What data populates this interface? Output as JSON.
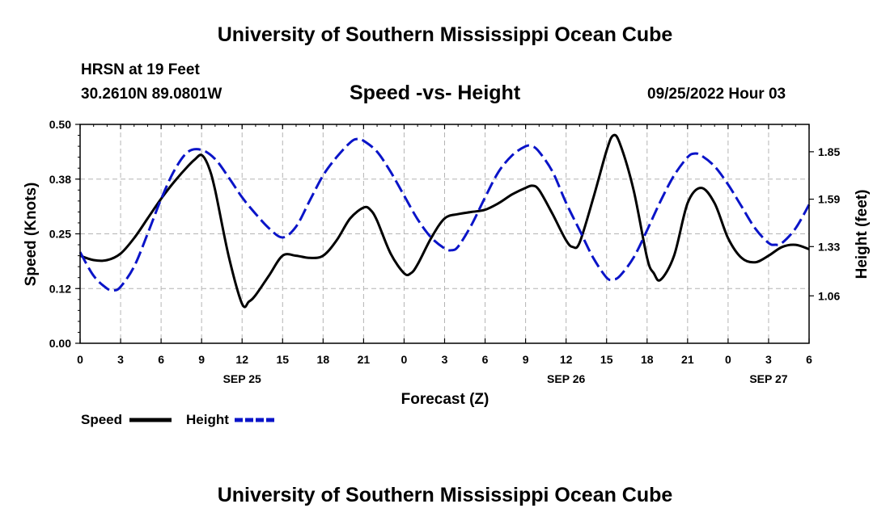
{
  "header": {
    "main_title": "University of Southern Mississippi Ocean Cube",
    "station": "HRSN at 19 Feet",
    "coords": "30.2610N  89.0801W",
    "chart_title": "Speed -vs- Height",
    "datetime": "09/25/2022 Hour 03"
  },
  "footer": {
    "title": "University of Southern Mississippi Ocean Cube"
  },
  "chart_data": {
    "type": "line",
    "title": "Speed -vs- Height",
    "xlabel": "Forecast (Z)",
    "ylabel_left": "Speed (Knots)",
    "ylabel_right": "Height (feet)",
    "x_hours_range": [
      0,
      54
    ],
    "ylim_left": [
      0,
      0.5
    ],
    "ylim_right": [
      0.8,
      2.0
    ],
    "x_tick_hours": [
      0,
      3,
      6,
      9,
      12,
      15,
      18,
      21,
      24,
      27,
      30,
      33,
      36,
      39,
      42,
      45,
      48,
      51,
      54
    ],
    "x_tick_labels": [
      "0",
      "3",
      "6",
      "9",
      "12",
      "15",
      "18",
      "21",
      "0",
      "3",
      "6",
      "9",
      "12",
      "15",
      "18",
      "21",
      "0",
      "3",
      "6"
    ],
    "date_labels": [
      {
        "hour": 12,
        "label": "SEP 25"
      },
      {
        "hour": 36,
        "label": "SEP 26"
      },
      {
        "hour": 51,
        "label": "SEP 27"
      }
    ],
    "left_ticks": [
      0.0,
      0.125,
      0.25,
      0.375,
      0.5
    ],
    "left_tick_labels": [
      "0.00",
      "0.12",
      "0.25",
      "0.38",
      "0.50"
    ],
    "right_ticks": [
      1.06,
      1.33,
      1.59,
      1.85
    ],
    "right_tick_labels": [
      "1.06",
      "1.33",
      "1.59",
      "1.85"
    ],
    "grid": true,
    "legend_position": "bottom-left",
    "series": [
      {
        "name": "Speed",
        "axis": "left",
        "color": "#000000",
        "style": "solid",
        "hours": [
          0,
          1,
          2,
          3,
          4,
          5,
          6,
          7,
          8,
          8.5,
          9,
          9.5,
          10,
          11,
          12,
          12.5,
          13,
          14,
          15,
          16,
          17,
          18,
          19,
          20,
          21,
          21.5,
          22,
          23,
          24,
          24.5,
          25,
          26,
          27,
          28,
          29,
          30,
          31,
          32,
          33,
          33.5,
          34,
          35,
          36,
          36.5,
          37,
          38,
          39,
          39.5,
          40,
          41,
          42,
          42.5,
          43,
          44,
          45,
          46,
          47,
          48,
          49,
          50,
          51,
          52,
          53,
          54
        ],
        "values": [
          0.2,
          0.19,
          0.19,
          0.205,
          0.24,
          0.285,
          0.33,
          0.37,
          0.405,
          0.42,
          0.43,
          0.405,
          0.35,
          0.2,
          0.09,
          0.095,
          0.11,
          0.155,
          0.2,
          0.2,
          0.195,
          0.2,
          0.235,
          0.285,
          0.31,
          0.305,
          0.28,
          0.205,
          0.16,
          0.16,
          0.18,
          0.24,
          0.285,
          0.295,
          0.3,
          0.305,
          0.32,
          0.34,
          0.355,
          0.36,
          0.35,
          0.295,
          0.235,
          0.22,
          0.23,
          0.33,
          0.44,
          0.475,
          0.455,
          0.35,
          0.195,
          0.16,
          0.145,
          0.2,
          0.32,
          0.355,
          0.32,
          0.24,
          0.195,
          0.185,
          0.2,
          0.22,
          0.225,
          0.215
        ]
      },
      {
        "name": "Height",
        "axis": "right",
        "color": "#0a14c8",
        "style": "dashed",
        "hours": [
          0,
          1,
          2,
          2.5,
          3,
          4,
          5,
          6,
          7,
          8,
          9,
          10,
          11,
          12,
          13,
          14,
          15,
          16,
          17,
          18,
          19,
          20,
          20.5,
          21,
          22,
          23,
          24,
          25,
          26,
          27,
          27.5,
          28,
          29,
          30,
          31,
          32,
          33,
          33.5,
          34,
          35,
          36,
          37,
          38,
          39,
          39.5,
          40,
          41,
          42,
          43,
          44,
          45,
          45.5,
          46,
          47,
          48,
          49,
          50,
          51,
          51.5,
          52,
          53,
          54
        ],
        "values": [
          1.3,
          1.17,
          1.1,
          1.09,
          1.11,
          1.22,
          1.4,
          1.59,
          1.75,
          1.85,
          1.86,
          1.81,
          1.71,
          1.6,
          1.51,
          1.43,
          1.38,
          1.44,
          1.58,
          1.72,
          1.82,
          1.9,
          1.92,
          1.91,
          1.85,
          1.74,
          1.61,
          1.48,
          1.38,
          1.32,
          1.31,
          1.33,
          1.45,
          1.6,
          1.74,
          1.83,
          1.88,
          1.88,
          1.85,
          1.74,
          1.57,
          1.42,
          1.27,
          1.16,
          1.15,
          1.17,
          1.27,
          1.42,
          1.58,
          1.72,
          1.82,
          1.84,
          1.83,
          1.77,
          1.67,
          1.55,
          1.43,
          1.35,
          1.34,
          1.35,
          1.43,
          1.56
        ]
      }
    ]
  }
}
